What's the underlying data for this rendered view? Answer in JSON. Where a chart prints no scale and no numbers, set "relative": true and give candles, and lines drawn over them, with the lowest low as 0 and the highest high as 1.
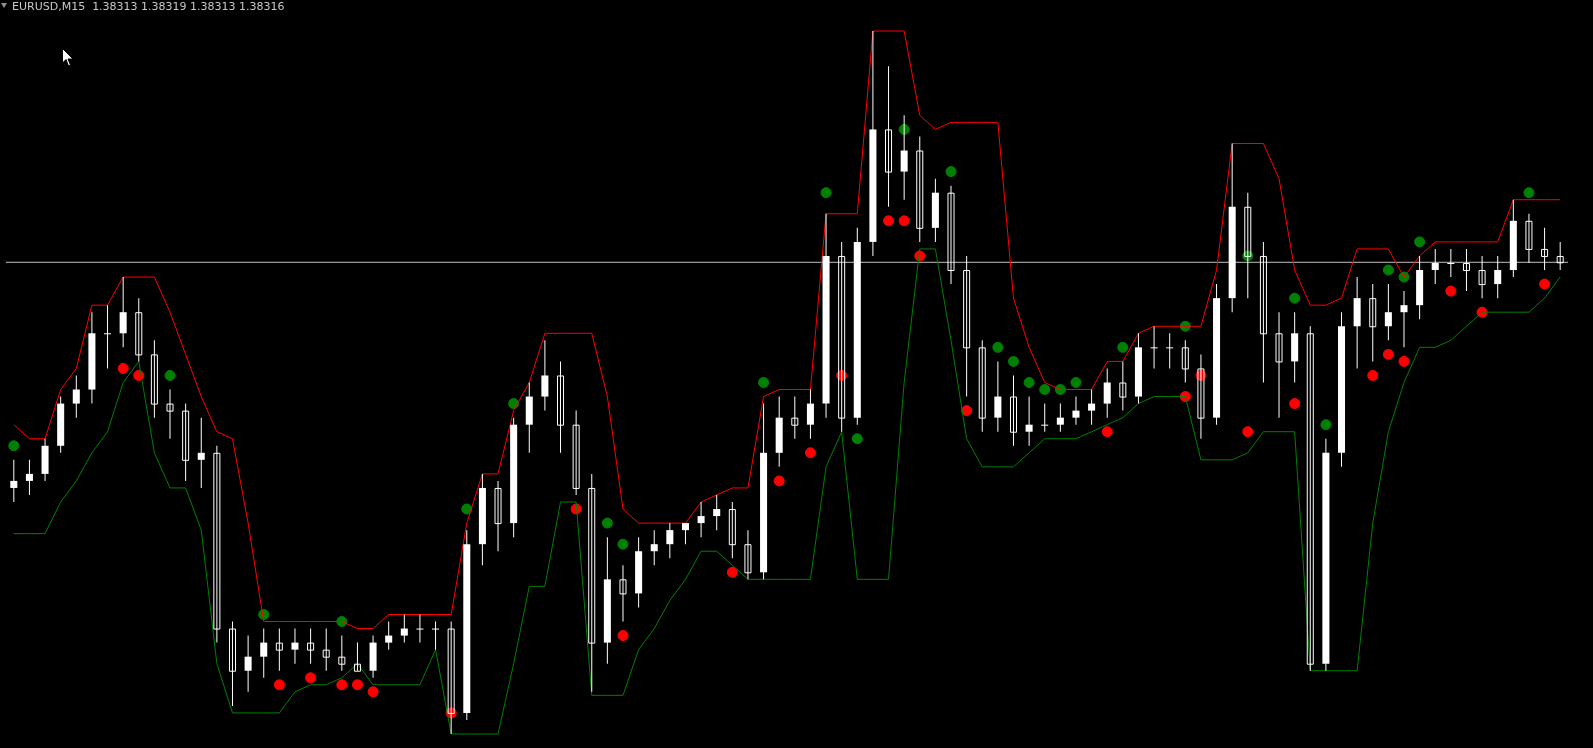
{
  "chart_data": {
    "type": "candlestick",
    "title": "EURUSD,M15  1.38313 1.38319 1.38313 1.38316",
    "relative": true,
    "color": "#ffffff",
    "categories": [
      null,
      null,
      null,
      null,
      null,
      null,
      null,
      null,
      null,
      null,
      null,
      null,
      null,
      null,
      null,
      null,
      null,
      null,
      null,
      null,
      null,
      null,
      null,
      null,
      null,
      null,
      null,
      null,
      null,
      null,
      null,
      null,
      null,
      null,
      null,
      null,
      null,
      null,
      null,
      null,
      null,
      null,
      null,
      null,
      null,
      null,
      null,
      null,
      null,
      null,
      null,
      null,
      null,
      null,
      null,
      null,
      null,
      null,
      null,
      null,
      null,
      null,
      null,
      null,
      null,
      null,
      null,
      null,
      null,
      null,
      null,
      null,
      null,
      null,
      null,
      null,
      null,
      null,
      null,
      null,
      null,
      null,
      null,
      null,
      null,
      null,
      null,
      null,
      null,
      null,
      null,
      null,
      null,
      null,
      null,
      null,
      null,
      null,
      null,
      null
    ],
    "ohlc": [
      [
        0.35,
        0.39,
        0.33,
        0.36
      ],
      [
        0.36,
        0.39,
        0.34,
        0.37
      ],
      [
        0.37,
        0.42,
        0.36,
        0.41
      ],
      [
        0.41,
        0.48,
        0.4,
        0.47
      ],
      [
        0.47,
        0.51,
        0.45,
        0.49
      ],
      [
        0.49,
        0.6,
        0.47,
        0.57
      ],
      [
        0.57,
        0.61,
        0.52,
        0.57
      ],
      [
        0.57,
        0.65,
        0.55,
        0.6
      ],
      [
        0.6,
        0.62,
        0.53,
        0.54
      ],
      [
        0.54,
        0.56,
        0.45,
        0.47
      ],
      [
        0.47,
        0.49,
        0.42,
        0.46
      ],
      [
        0.46,
        0.47,
        0.36,
        0.39
      ],
      [
        0.39,
        0.45,
        0.35,
        0.4
      ],
      [
        0.4,
        0.41,
        0.13,
        0.15
      ],
      [
        0.15,
        0.16,
        0.04,
        0.09
      ],
      [
        0.09,
        0.14,
        0.06,
        0.11
      ],
      [
        0.11,
        0.15,
        0.08,
        0.13
      ],
      [
        0.13,
        0.15,
        0.09,
        0.12
      ],
      [
        0.12,
        0.15,
        0.1,
        0.13
      ],
      [
        0.13,
        0.15,
        0.1,
        0.12
      ],
      [
        0.12,
        0.15,
        0.09,
        0.11
      ],
      [
        0.11,
        0.14,
        0.09,
        0.1
      ],
      [
        0.1,
        0.13,
        0.09,
        0.09
      ],
      [
        0.09,
        0.14,
        0.08,
        0.13
      ],
      [
        0.13,
        0.16,
        0.12,
        0.14
      ],
      [
        0.14,
        0.17,
        0.13,
        0.15
      ],
      [
        0.15,
        0.17,
        0.13,
        0.15
      ],
      [
        0.15,
        0.16,
        0.12,
        0.15
      ],
      [
        0.15,
        0.16,
        0,
        0.03
      ],
      [
        0.03,
        0.29,
        0.02,
        0.27
      ],
      [
        0.27,
        0.37,
        0.24,
        0.35
      ],
      [
        0.35,
        0.36,
        0.26,
        0.3
      ],
      [
        0.3,
        0.45,
        0.28,
        0.44
      ],
      [
        0.44,
        0.5,
        0.4,
        0.48
      ],
      [
        0.48,
        0.56,
        0.46,
        0.51
      ],
      [
        0.51,
        0.53,
        0.4,
        0.44
      ],
      [
        0.44,
        0.46,
        0.34,
        0.35
      ],
      [
        0.35,
        0.37,
        0.06,
        0.13
      ],
      [
        0.13,
        0.28,
        0.1,
        0.22
      ],
      [
        0.22,
        0.24,
        0.16,
        0.2
      ],
      [
        0.2,
        0.28,
        0.18,
        0.26
      ],
      [
        0.26,
        0.29,
        0.24,
        0.27
      ],
      [
        0.27,
        0.3,
        0.25,
        0.29
      ],
      [
        0.29,
        0.3,
        0.27,
        0.3
      ],
      [
        0.3,
        0.33,
        0.28,
        0.31
      ],
      [
        0.31,
        0.34,
        0.29,
        0.32
      ],
      [
        0.32,
        0.33,
        0.25,
        0.27
      ],
      [
        0.27,
        0.29,
        0.22,
        0.23
      ],
      [
        0.23,
        0.47,
        0.22,
        0.4
      ],
      [
        0.4,
        0.48,
        0.38,
        0.45
      ],
      [
        0.45,
        0.48,
        0.42,
        0.44
      ],
      [
        0.44,
        0.49,
        0.42,
        0.47
      ],
      [
        0.47,
        0.74,
        0.45,
        0.68
      ],
      [
        0.68,
        0.7,
        0.43,
        0.45
      ],
      [
        0.45,
        0.72,
        0.44,
        0.7
      ],
      [
        0.7,
        1,
        0.68,
        0.86
      ],
      [
        0.86,
        0.95,
        0.75,
        0.8
      ],
      [
        0.8,
        0.88,
        0.76,
        0.83
      ],
      [
        0.83,
        0.85,
        0.7,
        0.72
      ],
      [
        0.72,
        0.79,
        0.7,
        0.77
      ],
      [
        0.77,
        0.78,
        0.64,
        0.66
      ],
      [
        0.66,
        0.68,
        0.48,
        0.55
      ],
      [
        0.55,
        0.56,
        0.43,
        0.45
      ],
      [
        0.45,
        0.53,
        0.43,
        0.48
      ],
      [
        0.48,
        0.51,
        0.41,
        0.43
      ],
      [
        0.43,
        0.48,
        0.41,
        0.44
      ],
      [
        0.44,
        0.47,
        0.43,
        0.44
      ],
      [
        0.44,
        0.47,
        0.43,
        0.45
      ],
      [
        0.45,
        0.48,
        0.44,
        0.46
      ],
      [
        0.46,
        0.49,
        0.44,
        0.47
      ],
      [
        0.47,
        0.52,
        0.45,
        0.5
      ],
      [
        0.5,
        0.53,
        0.46,
        0.48
      ],
      [
        0.48,
        0.57,
        0.47,
        0.55
      ],
      [
        0.55,
        0.58,
        0.52,
        0.55
      ],
      [
        0.55,
        0.57,
        0.52,
        0.55
      ],
      [
        0.55,
        0.56,
        0.5,
        0.52
      ],
      [
        0.52,
        0.54,
        0.42,
        0.45
      ],
      [
        0.45,
        0.64,
        0.44,
        0.62
      ],
      [
        0.62,
        0.84,
        0.6,
        0.75
      ],
      [
        0.75,
        0.77,
        0.62,
        0.68
      ],
      [
        0.68,
        0.7,
        0.5,
        0.57
      ],
      [
        0.57,
        0.6,
        0.45,
        0.53
      ],
      [
        0.53,
        0.6,
        0.5,
        0.57
      ],
      [
        0.57,
        0.58,
        0.09,
        0.1
      ],
      [
        0.1,
        0.42,
        0.09,
        0.4
      ],
      [
        0.4,
        0.6,
        0.38,
        0.58
      ],
      [
        0.58,
        0.65,
        0.52,
        0.62
      ],
      [
        0.62,
        0.64,
        0.53,
        0.58
      ],
      [
        0.58,
        0.64,
        0.56,
        0.6
      ],
      [
        0.6,
        0.63,
        0.55,
        0.61
      ],
      [
        0.61,
        0.68,
        0.59,
        0.66
      ],
      [
        0.66,
        0.69,
        0.64,
        0.67
      ],
      [
        0.67,
        0.69,
        0.65,
        0.67
      ],
      [
        0.67,
        0.69,
        0.63,
        0.66
      ],
      [
        0.66,
        0.68,
        0.62,
        0.64
      ],
      [
        0.64,
        0.68,
        0.62,
        0.66
      ],
      [
        0.66,
        0.76,
        0.65,
        0.73
      ],
      [
        0.73,
        0.74,
        0.67,
        0.69
      ],
      [
        0.69,
        0.72,
        0.66,
        0.68
      ],
      [
        0.68,
        0.7,
        0.66,
        0.671
      ]
    ],
    "series": [
      {
        "type": "line",
        "color": "#ff0000",
        "values": [
          0.44,
          0.42,
          0.42,
          0.49,
          0.52,
          0.61,
          0.61,
          0.65,
          0.65,
          0.65,
          0.6,
          0.54,
          0.48,
          0.43,
          0.42,
          0.3,
          0.16,
          0.16,
          0.16,
          0.16,
          0.16,
          0.16,
          0.15,
          0.15,
          0.17,
          0.17,
          0.17,
          0.17,
          0.17,
          0.3,
          0.37,
          0.37,
          0.46,
          0.5,
          0.57,
          0.57,
          0.57,
          0.57,
          0.48,
          0.32,
          0.3,
          0.3,
          0.3,
          0.3,
          0.33,
          0.34,
          0.35,
          0.35,
          0.48,
          0.49,
          0.49,
          0.49,
          0.74,
          0.74,
          0.74,
          1,
          1,
          1,
          0.88,
          0.86,
          0.87,
          0.87,
          0.87,
          0.87,
          0.62,
          0.55,
          0.5,
          0.49,
          0.49,
          0.49,
          0.53,
          0.53,
          0.57,
          0.58,
          0.58,
          0.58,
          0.58,
          0.66,
          0.84,
          0.84,
          0.84,
          0.79,
          0.66,
          0.61,
          0.61,
          0.62,
          0.69,
          0.69,
          0.69,
          0.65,
          0.68,
          0.7,
          0.7,
          0.7,
          0.7,
          0.7,
          0.76,
          0.76,
          0.76,
          0.76
        ]
      },
      {
        "type": "line",
        "color": "#008000",
        "values": [
          0.285,
          0.285,
          0.285,
          0.33,
          0.36,
          0.4,
          0.43,
          0.5,
          0.53,
          0.4,
          0.35,
          0.35,
          0.29,
          0.1,
          0.03,
          0.03,
          0.03,
          0.03,
          0.06,
          0.07,
          0.07,
          0.08,
          0.1,
          0.07,
          0.07,
          0.07,
          0.07,
          0.12,
          0,
          0,
          0,
          0,
          0.1,
          0.21,
          0.21,
          0.33,
          0.33,
          0.055,
          0.055,
          0.055,
          0.12,
          0.15,
          0.19,
          0.22,
          0.26,
          0.26,
          0.24,
          0.22,
          0.22,
          0.22,
          0.22,
          0.22,
          0.38,
          0.43,
          0.22,
          0.22,
          0.22,
          0.5,
          0.69,
          0.69,
          0.56,
          0.42,
          0.38,
          0.38,
          0.38,
          0.4,
          0.42,
          0.42,
          0.42,
          0.43,
          0.44,
          0.45,
          0.47,
          0.48,
          0.48,
          0.48,
          0.39,
          0.39,
          0.39,
          0.4,
          0.43,
          0.43,
          0.43,
          0.09,
          0.09,
          0.09,
          0.09,
          0.3,
          0.43,
          0.5,
          0.55,
          0.55,
          0.56,
          0.58,
          0.6,
          0.6,
          0.6,
          0.6,
          0.62,
          0.65
        ]
      },
      {
        "type": "scatter",
        "color": "#008000",
        "marker": "circle",
        "values": [
          0.41,
          null,
          null,
          null,
          null,
          null,
          null,
          null,
          null,
          null,
          0.51,
          null,
          null,
          null,
          null,
          null,
          0.17,
          null,
          null,
          null,
          null,
          0.16,
          null,
          null,
          null,
          null,
          null,
          null,
          null,
          0.32,
          null,
          null,
          0.47,
          null,
          null,
          null,
          null,
          null,
          0.3,
          0.27,
          null,
          null,
          null,
          null,
          null,
          null,
          null,
          null,
          0.5,
          null,
          null,
          null,
          0.77,
          null,
          0.42,
          null,
          null,
          0.86,
          null,
          null,
          0.8,
          null,
          null,
          0.55,
          0.53,
          0.5,
          0.49,
          0.49,
          0.5,
          null,
          null,
          0.55,
          null,
          null,
          null,
          0.58,
          null,
          null,
          null,
          0.68,
          null,
          null,
          0.62,
          null,
          0.44,
          null,
          null,
          null,
          0.66,
          0.65,
          0.7,
          null,
          null,
          null,
          null,
          null,
          null,
          0.77,
          null,
          null
        ]
      },
      {
        "type": "scatter",
        "color": "#ff0000",
        "marker": "circle",
        "values": [
          null,
          null,
          null,
          null,
          null,
          null,
          null,
          0.52,
          0.51,
          null,
          null,
          null,
          null,
          null,
          null,
          null,
          null,
          0.07,
          null,
          0.08,
          null,
          0.07,
          0.07,
          0.06,
          null,
          null,
          null,
          null,
          0.03,
          null,
          null,
          null,
          null,
          null,
          null,
          null,
          0.32,
          null,
          null,
          0.14,
          null,
          null,
          null,
          null,
          null,
          null,
          0.23,
          null,
          null,
          0.36,
          null,
          0.4,
          null,
          0.51,
          null,
          null,
          0.73,
          0.73,
          0.68,
          null,
          null,
          0.46,
          null,
          null,
          null,
          null,
          null,
          null,
          null,
          null,
          0.43,
          null,
          null,
          null,
          null,
          0.48,
          0.51,
          null,
          null,
          0.43,
          null,
          null,
          0.47,
          null,
          null,
          null,
          null,
          0.51,
          0.54,
          0.53,
          null,
          null,
          0.63,
          null,
          0.6,
          null,
          null,
          null,
          0.64,
          null
        ]
      }
    ],
    "ref_lines": [
      {
        "axis": "y",
        "value": 0.671,
        "color": "#c0c0c0"
      }
    ]
  }
}
